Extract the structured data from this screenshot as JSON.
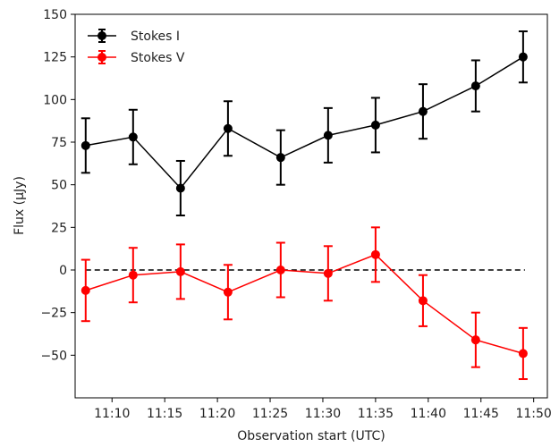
{
  "chart_data": {
    "type": "line",
    "xlabel": "Observation start (UTC)",
    "ylabel": "Flux (µJy)",
    "xlim_minutes": [
      "11:06.5",
      "11:51.3"
    ],
    "xticks": [
      "11:10",
      "11:15",
      "11:20",
      "11:25",
      "11:30",
      "11:35",
      "11:40",
      "11:45",
      "11:50"
    ],
    "ylim": [
      -75,
      150
    ],
    "yticks": [
      -50,
      -25,
      0,
      25,
      50,
      75,
      100,
      125,
      150
    ],
    "grid": false,
    "legend_position": "top-left",
    "reference_line": {
      "y": 0,
      "style": "dashed",
      "color": "#000000"
    },
    "series": [
      {
        "name": "Stokes I",
        "color": "#000000",
        "x": [
          "11:07.5",
          "11:12",
          "11:16.5",
          "11:21",
          "11:26",
          "11:30.5",
          "11:35",
          "11:39.5",
          "11:44.5",
          "11:49"
        ],
        "y": [
          73,
          78,
          48,
          83,
          66,
          79,
          85,
          93,
          108,
          125
        ],
        "err": [
          16,
          16,
          16,
          16,
          16,
          16,
          16,
          16,
          15,
          15
        ]
      },
      {
        "name": "Stokes V",
        "color": "#ff0000",
        "x": [
          "11:07.5",
          "11:12",
          "11:16.5",
          "11:21",
          "11:26",
          "11:30.5",
          "11:35",
          "11:39.5",
          "11:44.5",
          "11:49"
        ],
        "y": [
          -12,
          -3,
          -1,
          -13,
          0,
          -2,
          9,
          -18,
          -41,
          -49
        ],
        "err": [
          18,
          16,
          16,
          16,
          16,
          16,
          16,
          15,
          16,
          15
        ]
      }
    ]
  }
}
